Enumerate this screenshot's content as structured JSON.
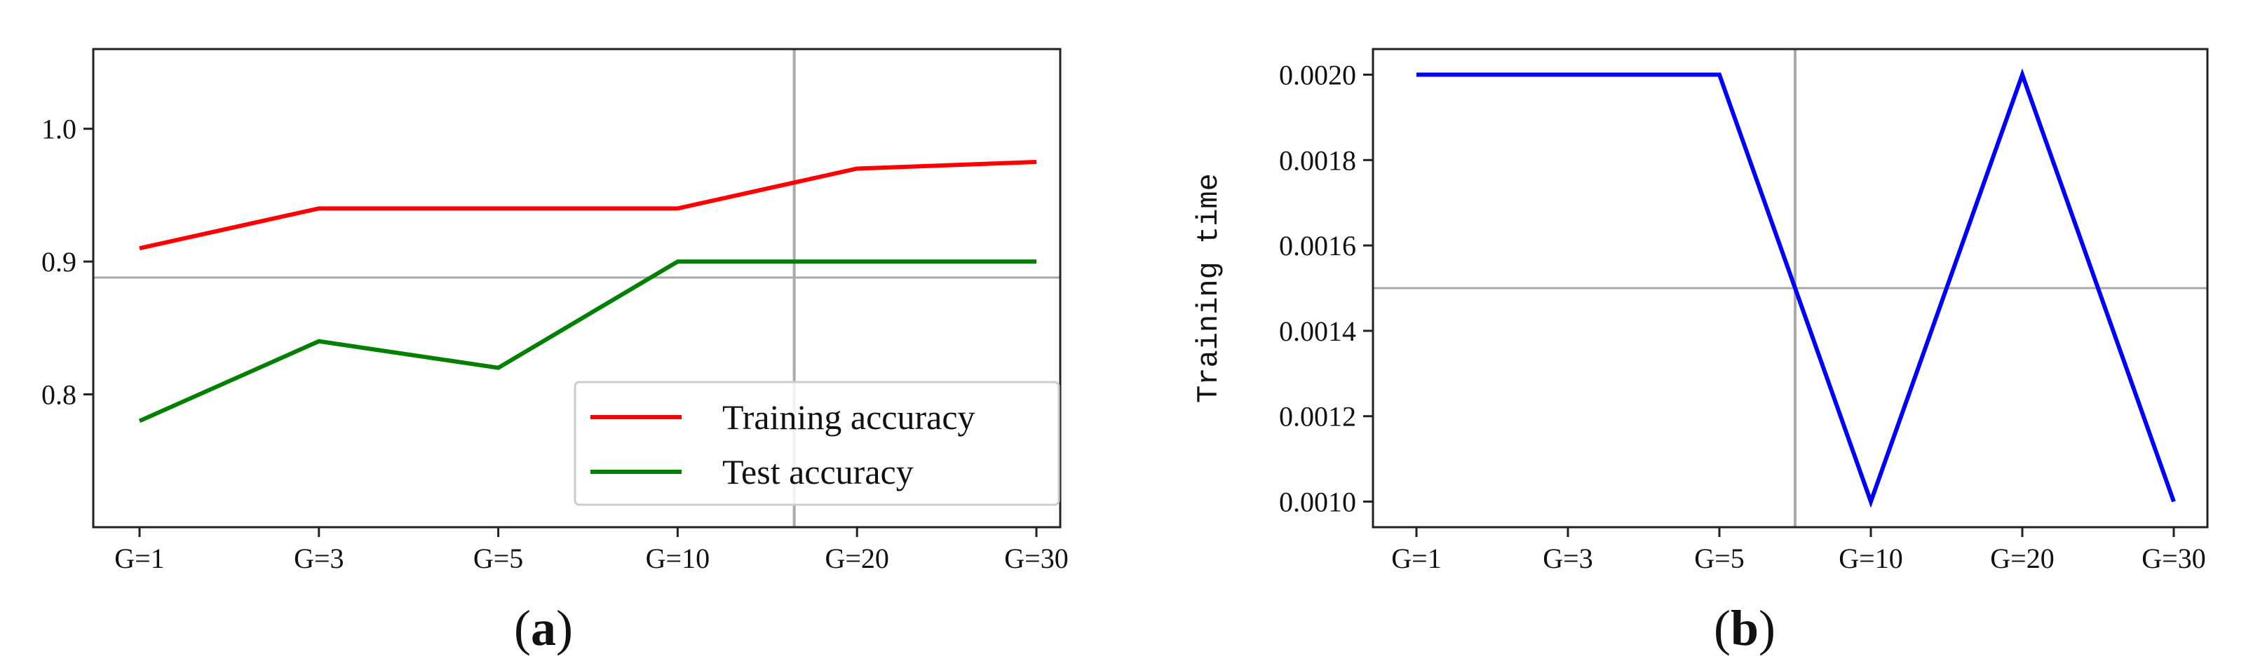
{
  "chart_data": [
    {
      "panel": "(a)",
      "panel_letter": "a",
      "type": "line",
      "categories": [
        "G=1",
        "G=3",
        "G=5",
        "G=10",
        "G=20",
        "G=30"
      ],
      "series": [
        {
          "name": "Training accuracy",
          "color": "#ff0000",
          "values": [
            0.91,
            0.94,
            0.94,
            0.94,
            0.97,
            0.975
          ]
        },
        {
          "name": "Test accuracy",
          "color": "#008000",
          "values": [
            0.78,
            0.84,
            0.82,
            0.9,
            0.9,
            0.9
          ]
        }
      ],
      "yticks": [
        "0.8",
        "0.9",
        "1.0"
      ],
      "ylim": [
        0.7,
        1.06
      ],
      "xlabel": "",
      "ylabel": "",
      "legend": "lower-right",
      "crosshair": {
        "x_category_position": 3.65,
        "y": 0.888
      },
      "crosshair_color": "#aaaaaa"
    },
    {
      "panel": "(b)",
      "panel_letter": "b",
      "type": "line",
      "categories": [
        "G=1",
        "G=3",
        "G=5",
        "G=10",
        "G=20",
        "G=30"
      ],
      "series": [
        {
          "color": "#0000ff",
          "values": [
            0.002,
            0.002,
            0.002,
            0.001,
            0.002,
            0.001
          ]
        }
      ],
      "yticks": [
        "0.0010",
        "0.0012",
        "0.0014",
        "0.0016",
        "0.0018",
        "0.0020"
      ],
      "ylim": [
        0.00094,
        0.00206
      ],
      "xlabel": "",
      "ylabel": "Training time",
      "legend": "none",
      "crosshair": {
        "x_category_position": 2.5,
        "y": 0.0015
      },
      "crosshair_color": "#aaaaaa"
    }
  ]
}
